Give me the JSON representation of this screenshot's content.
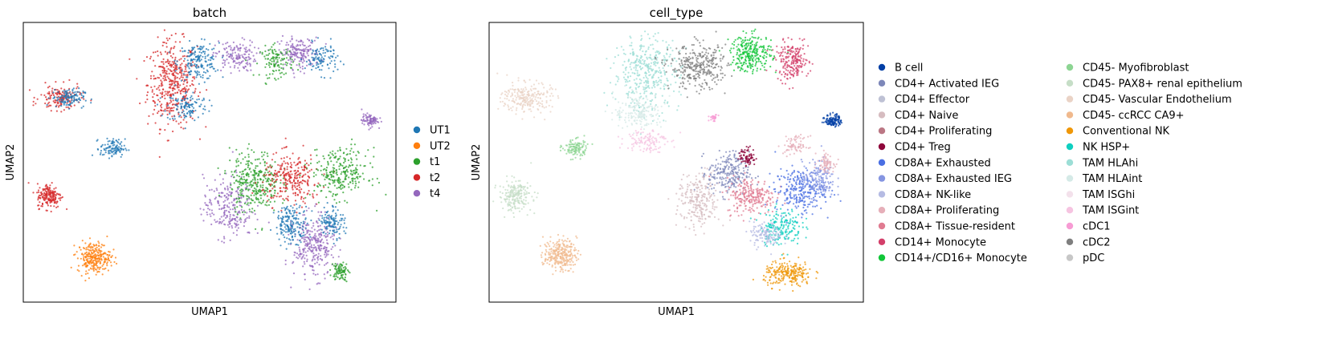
{
  "chart_data": [
    {
      "type": "scatter",
      "title": "batch",
      "xlabel": "UMAP1",
      "ylabel": "UMAP2",
      "grid": false,
      "legend_position": "right",
      "legend": [
        {
          "label": "UT1",
          "color": "#1f77b4"
        },
        {
          "label": "UT2",
          "color": "#ff7f0e"
        },
        {
          "label": "t1",
          "color": "#2ca02c"
        },
        {
          "label": "t2",
          "color": "#d62728"
        },
        {
          "label": "t4",
          "color": "#9467bd"
        }
      ],
      "clusters": [
        {
          "x": 0.4,
          "y": 0.78,
          "rx": 0.06,
          "ry": 0.14,
          "color": "#d62728",
          "n": 140
        },
        {
          "x": 0.47,
          "y": 0.86,
          "rx": 0.05,
          "ry": 0.06,
          "color": "#1f77b4",
          "n": 60
        },
        {
          "x": 0.44,
          "y": 0.7,
          "rx": 0.05,
          "ry": 0.05,
          "color": "#1f77b4",
          "n": 40
        },
        {
          "x": 0.57,
          "y": 0.88,
          "rx": 0.05,
          "ry": 0.05,
          "color": "#9467bd",
          "n": 50
        },
        {
          "x": 0.74,
          "y": 0.89,
          "rx": 0.05,
          "ry": 0.05,
          "color": "#9467bd",
          "n": 60
        },
        {
          "x": 0.68,
          "y": 0.86,
          "rx": 0.04,
          "ry": 0.05,
          "color": "#2ca02c",
          "n": 40
        },
        {
          "x": 0.8,
          "y": 0.87,
          "rx": 0.04,
          "ry": 0.05,
          "color": "#1f77b4",
          "n": 35
        },
        {
          "x": 0.1,
          "y": 0.73,
          "rx": 0.05,
          "ry": 0.04,
          "color": "#d62728",
          "n": 50
        },
        {
          "x": 0.12,
          "y": 0.73,
          "rx": 0.04,
          "ry": 0.03,
          "color": "#1f77b4",
          "n": 40
        },
        {
          "x": 0.24,
          "y": 0.55,
          "rx": 0.03,
          "ry": 0.03,
          "color": "#1f77b4",
          "n": 35
        },
        {
          "x": 0.07,
          "y": 0.38,
          "rx": 0.03,
          "ry": 0.04,
          "color": "#d62728",
          "n": 60
        },
        {
          "x": 0.19,
          "y": 0.16,
          "rx": 0.04,
          "ry": 0.05,
          "color": "#ff7f0e",
          "n": 90
        },
        {
          "x": 0.93,
          "y": 0.65,
          "rx": 0.02,
          "ry": 0.02,
          "color": "#9467bd",
          "n": 30
        },
        {
          "x": 0.55,
          "y": 0.34,
          "rx": 0.06,
          "ry": 0.1,
          "color": "#9467bd",
          "n": 80
        },
        {
          "x": 0.62,
          "y": 0.43,
          "rx": 0.06,
          "ry": 0.1,
          "color": "#2ca02c",
          "n": 110
        },
        {
          "x": 0.72,
          "y": 0.44,
          "rx": 0.07,
          "ry": 0.08,
          "color": "#d62728",
          "n": 90
        },
        {
          "x": 0.85,
          "y": 0.46,
          "rx": 0.07,
          "ry": 0.08,
          "color": "#2ca02c",
          "n": 90
        },
        {
          "x": 0.78,
          "y": 0.2,
          "rx": 0.05,
          "ry": 0.1,
          "color": "#9467bd",
          "n": 100
        },
        {
          "x": 0.72,
          "y": 0.28,
          "rx": 0.04,
          "ry": 0.06,
          "color": "#1f77b4",
          "n": 60
        },
        {
          "x": 0.83,
          "y": 0.29,
          "rx": 0.03,
          "ry": 0.05,
          "color": "#1f77b4",
          "n": 40
        },
        {
          "x": 0.85,
          "y": 0.11,
          "rx": 0.02,
          "ry": 0.03,
          "color": "#2ca02c",
          "n": 30
        }
      ]
    },
    {
      "type": "scatter",
      "title": "cell_type",
      "xlabel": "UMAP1",
      "ylabel": "UMAP2",
      "grid": false,
      "legend_position": "right",
      "legend": [
        {
          "label": "B cell",
          "color": "#023fa5"
        },
        {
          "label": "CD4+ Activated IEG",
          "color": "#7d87b9"
        },
        {
          "label": "CD4+ Effector",
          "color": "#bec1d4"
        },
        {
          "label": "CD4+ Naive",
          "color": "#d6bcc0"
        },
        {
          "label": "CD4+ Proliferating",
          "color": "#bb7784"
        },
        {
          "label": "CD4+ Treg",
          "color": "#8e063b"
        },
        {
          "label": "CD8A+ Exhausted",
          "color": "#4a6fe3"
        },
        {
          "label": "CD8A+ Exhausted IEG",
          "color": "#8595e1"
        },
        {
          "label": "CD8A+ NK-like",
          "color": "#b5bbe3"
        },
        {
          "label": "CD8A+ Proliferating",
          "color": "#e6afb9"
        },
        {
          "label": "CD8A+ Tissue-resident",
          "color": "#e07b91"
        },
        {
          "label": "CD14+ Monocyte",
          "color": "#d33f6a"
        },
        {
          "label": "CD14+/CD16+ Monocyte",
          "color": "#11c638"
        },
        {
          "label": "CD45- Myofibroblast",
          "color": "#8dd593"
        },
        {
          "label": "CD45- PAX8+ renal epithelium",
          "color": "#c6dec7"
        },
        {
          "label": "CD45- Vascular Endothelium",
          "color": "#ead3c6"
        },
        {
          "label": "CD45- ccRCC CA9+",
          "color": "#f0b98d"
        },
        {
          "label": "Conventional NK",
          "color": "#ef9708"
        },
        {
          "label": "NK HSP+",
          "color": "#0fcfc0"
        },
        {
          "label": "TAM HLAhi",
          "color": "#9cded6"
        },
        {
          "label": "TAM HLAint",
          "color": "#d5eae7"
        },
        {
          "label": "TAM ISGhi",
          "color": "#f3e1eb"
        },
        {
          "label": "TAM ISGint",
          "color": "#f6c4e1"
        },
        {
          "label": "cDC1",
          "color": "#f79cd4"
        },
        {
          "label": "cDC2",
          "color": "#7f7f7f"
        },
        {
          "label": "pDC",
          "color": "#c7c7c7"
        }
      ],
      "clusters": [
        {
          "x": 0.42,
          "y": 0.82,
          "rx": 0.08,
          "ry": 0.12,
          "color": "#9cded6",
          "n": 130
        },
        {
          "x": 0.4,
          "y": 0.68,
          "rx": 0.06,
          "ry": 0.06,
          "color": "#d5eae7",
          "n": 60
        },
        {
          "x": 0.56,
          "y": 0.84,
          "rx": 0.07,
          "ry": 0.07,
          "color": "#7f7f7f",
          "n": 110
        },
        {
          "x": 0.7,
          "y": 0.89,
          "rx": 0.05,
          "ry": 0.06,
          "color": "#11c638",
          "n": 90
        },
        {
          "x": 0.81,
          "y": 0.86,
          "rx": 0.04,
          "ry": 0.06,
          "color": "#d33f6a",
          "n": 70
        },
        {
          "x": 0.42,
          "y": 0.58,
          "rx": 0.05,
          "ry": 0.04,
          "color": "#f6c4e1",
          "n": 40
        },
        {
          "x": 0.1,
          "y": 0.73,
          "rx": 0.06,
          "ry": 0.05,
          "color": "#ead3c6",
          "n": 80
        },
        {
          "x": 0.23,
          "y": 0.55,
          "rx": 0.03,
          "ry": 0.03,
          "color": "#8dd593",
          "n": 40
        },
        {
          "x": 0.07,
          "y": 0.38,
          "rx": 0.04,
          "ry": 0.05,
          "color": "#c6dec7",
          "n": 70
        },
        {
          "x": 0.19,
          "y": 0.17,
          "rx": 0.04,
          "ry": 0.05,
          "color": "#f0b98d",
          "n": 90
        },
        {
          "x": 0.92,
          "y": 0.65,
          "rx": 0.02,
          "ry": 0.02,
          "color": "#023fa5",
          "n": 40
        },
        {
          "x": 0.56,
          "y": 0.36,
          "rx": 0.05,
          "ry": 0.09,
          "color": "#d6bcc0",
          "n": 80
        },
        {
          "x": 0.64,
          "y": 0.46,
          "rx": 0.05,
          "ry": 0.07,
          "color": "#7d87b9",
          "n": 80
        },
        {
          "x": 0.7,
          "y": 0.38,
          "rx": 0.06,
          "ry": 0.06,
          "color": "#e07b91",
          "n": 80
        },
        {
          "x": 0.83,
          "y": 0.4,
          "rx": 0.06,
          "ry": 0.07,
          "color": "#4a6fe3",
          "n": 90
        },
        {
          "x": 0.88,
          "y": 0.44,
          "rx": 0.04,
          "ry": 0.06,
          "color": "#8595e1",
          "n": 50
        },
        {
          "x": 0.69,
          "y": 0.52,
          "rx": 0.02,
          "ry": 0.03,
          "color": "#8e063b",
          "n": 25
        },
        {
          "x": 0.78,
          "y": 0.27,
          "rx": 0.05,
          "ry": 0.06,
          "color": "#0fcfc0",
          "n": 60
        },
        {
          "x": 0.74,
          "y": 0.24,
          "rx": 0.04,
          "ry": 0.04,
          "color": "#b5bbe3",
          "n": 40
        },
        {
          "x": 0.8,
          "y": 0.1,
          "rx": 0.06,
          "ry": 0.04,
          "color": "#ef9708",
          "n": 80
        },
        {
          "x": 0.9,
          "y": 0.5,
          "rx": 0.02,
          "ry": 0.03,
          "color": "#e6afb9",
          "n": 25
        },
        {
          "x": 0.82,
          "y": 0.56,
          "rx": 0.03,
          "ry": 0.03,
          "color": "#e6afb9",
          "n": 25
        },
        {
          "x": 0.6,
          "y": 0.66,
          "rx": 0.01,
          "ry": 0.01,
          "color": "#f79cd4",
          "n": 10
        }
      ]
    }
  ]
}
